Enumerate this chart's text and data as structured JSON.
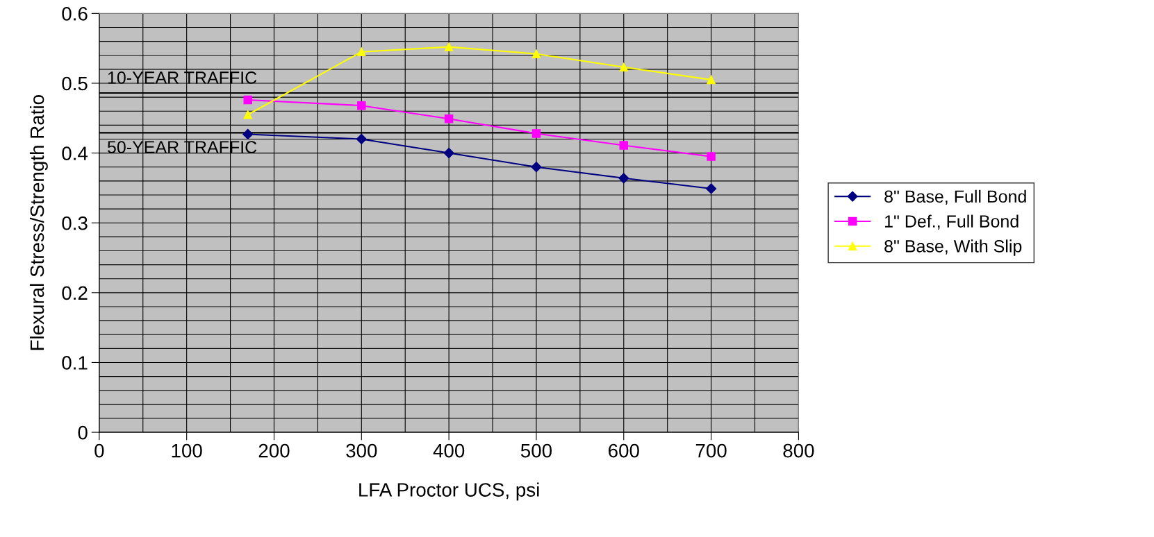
{
  "chart_data": {
    "type": "line",
    "xlabel": "LFA Proctor UCS, psi",
    "ylabel": "Flexural Stress/Strength Ratio",
    "x": [
      170,
      300,
      400,
      500,
      600,
      700
    ],
    "series": [
      {
        "name": "8\" Base, Full Bond",
        "color": "#000080",
        "marker": "diamond",
        "values": [
          0.427,
          0.42,
          0.4,
          0.38,
          0.364,
          0.349
        ]
      },
      {
        "name": "1\" Def., Full Bond",
        "color": "#ff00ff",
        "marker": "square",
        "values": [
          0.476,
          0.468,
          0.449,
          0.428,
          0.411,
          0.395
        ]
      },
      {
        "name": "8\" Base, With Slip",
        "color": "#ffff00",
        "marker": "triangle",
        "values": [
          0.455,
          0.545,
          0.552,
          0.542,
          0.523,
          0.505
        ]
      }
    ],
    "xlim": [
      0,
      800
    ],
    "xticks": [
      0,
      100,
      200,
      300,
      400,
      500,
      600,
      700,
      800
    ],
    "ylim": [
      0,
      0.6
    ],
    "yticks": [
      0,
      0.1,
      0.2,
      0.3,
      0.4,
      0.5,
      0.6
    ],
    "ref_lines": [
      {
        "axis": "y",
        "value": 0.486,
        "label": "10-YEAR TRAFFIC",
        "color": "#000000"
      },
      {
        "axis": "y",
        "value": 0.429,
        "label": "50-YEAR TRAFFIC",
        "color": "#000000"
      }
    ],
    "grid": true,
    "legend": "right",
    "line_style": "solid"
  }
}
